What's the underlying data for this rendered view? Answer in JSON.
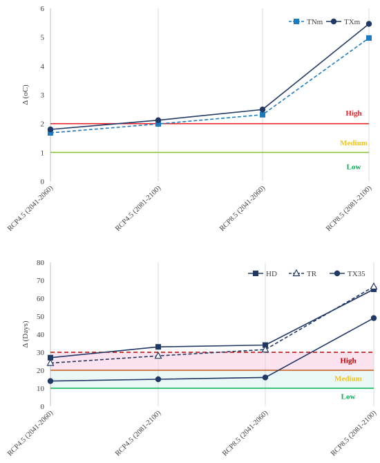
{
  "chart_data": [
    {
      "type": "line",
      "categories": [
        "RCP4.5 (2041-2060)",
        "RCP4.5 (2081-2100)",
        "RCP8.5 (2041-2060)",
        "RCP8.5 (2081-2100)"
      ],
      "ylabel": "Δ (oC)",
      "ylim": [
        0,
        6
      ],
      "yticks": [
        0,
        1,
        2,
        3,
        4,
        5,
        6
      ],
      "grid": "vertical",
      "legend_position": "top-right",
      "series": [
        {
          "name": "TNm",
          "values": [
            1.68,
            1.99,
            2.31,
            4.97
          ],
          "color": "#1f7bc0",
          "dashed": true,
          "marker": "square"
        },
        {
          "name": "TXm",
          "values": [
            1.8,
            2.12,
            2.49,
            5.46
          ],
          "color": "#1f3864",
          "dashed": false,
          "marker": "circle"
        }
      ],
      "thresholds": [
        {
          "label": "High",
          "value": 2,
          "color": "#e8242b",
          "dashed": false
        },
        {
          "label": "Medium",
          "value": null,
          "color": "#f2c318"
        },
        {
          "label": "Low",
          "value": 1,
          "color": "#8cc63f",
          "dashed": false
        }
      ],
      "threshold_text_colors": {
        "High": "#e8242b",
        "Medium": "#f2c318",
        "Low": "#00b050"
      },
      "threshold_text_levels": {
        "High": 2.38,
        "Medium": 1.34,
        "Low": 0.52
      }
    },
    {
      "type": "line",
      "categories": [
        "RCP4.5 (2041-2060)",
        "RCP4.5 (2081-2100)",
        "RCP8.5 (2041-2060)",
        "RCP8.5 (2081-2100)"
      ],
      "ylabel": "Δ (Days)",
      "ylim": [
        0,
        80
      ],
      "yticks": [
        0,
        10,
        20,
        30,
        40,
        50,
        60,
        70,
        80
      ],
      "grid": "vertical",
      "legend_position": "top-right",
      "series": [
        {
          "name": "HD",
          "values": [
            27,
            33,
            34,
            65
          ],
          "color": "#1f3864",
          "dashed": false,
          "marker": "square"
        },
        {
          "name": "TR",
          "values": [
            24,
            28,
            31.5,
            66.5
          ],
          "color": "#1f3864",
          "dashed": true,
          "marker": "triangle"
        },
        {
          "name": "TX35",
          "values": [
            14,
            15,
            16,
            49
          ],
          "color": "#1f3864",
          "dashed": false,
          "marker": "circle"
        }
      ],
      "thresholds": [
        {
          "label": "High",
          "value": 30,
          "color": "#c00000",
          "dashed": true
        },
        {
          "label": "Medium",
          "value": 20,
          "color": "#c55a11",
          "dashed": false
        },
        {
          "label": "Low",
          "value": 10,
          "color": "#00b050",
          "dashed": false
        }
      ],
      "threshold_text_colors": {
        "High": "#c00000",
        "Medium": "#f2c318",
        "Low": "#00b050"
      },
      "threshold_text_levels": {
        "High": 25.5,
        "Medium": 15.5,
        "Low": 5.5
      },
      "bands": [
        {
          "from": 20,
          "to": 30,
          "color": "#fbe4ef"
        },
        {
          "from": 10,
          "to": 20,
          "color": "#eaf7f7"
        }
      ]
    }
  ]
}
